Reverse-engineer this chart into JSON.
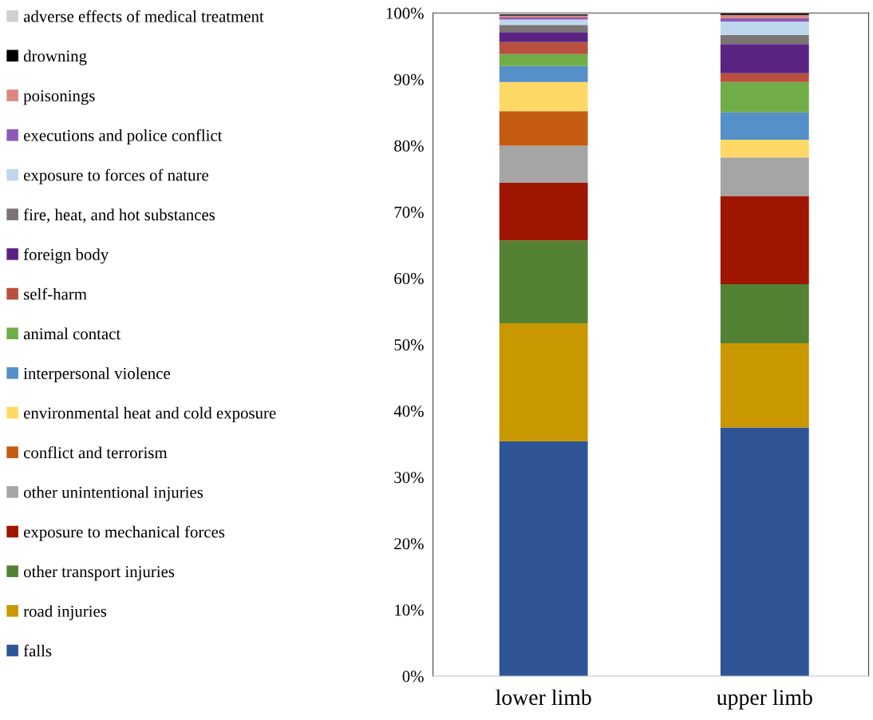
{
  "chart_data": {
    "type": "bar",
    "stacked": true,
    "categories": [
      "lower limb",
      "upper limb"
    ],
    "series": [
      {
        "name": "falls",
        "color": "#2f5597",
        "values": [
          35.4,
          37.5
        ]
      },
      {
        "name": "road injuries",
        "color": "#c99700",
        "values": [
          17.8,
          12.7
        ]
      },
      {
        "name": "other transport injuries",
        "color": "#548235",
        "values": [
          12.5,
          8.9
        ]
      },
      {
        "name": "exposure to mechanical forces",
        "color": "#9e1500",
        "values": [
          8.7,
          13.3
        ]
      },
      {
        "name": "other unintentional injuries",
        "color": "#a5a5a5",
        "values": [
          5.6,
          5.8
        ]
      },
      {
        "name": "conflict and terrorism",
        "color": "#c55a11",
        "values": [
          5.2,
          0
        ]
      },
      {
        "name": "environmental heat and cold exposure",
        "color": "#ffd966",
        "values": [
          4.4,
          2.7
        ]
      },
      {
        "name": "interpersonal violence",
        "color": "#5590c8",
        "values": [
          2.4,
          4.1
        ]
      },
      {
        "name": "animal contact",
        "color": "#70ad47",
        "values": [
          1.8,
          4.6
        ]
      },
      {
        "name": "self-harm",
        "color": "#b94f3f",
        "values": [
          1.8,
          1.3
        ]
      },
      {
        "name": "foreign body",
        "color": "#5a2381",
        "values": [
          1.5,
          4.4
        ]
      },
      {
        "name": "fire, heat, and hot substances",
        "color": "#7b7374",
        "values": [
          1.1,
          1.4
        ]
      },
      {
        "name": "exposure to forces of nature",
        "color": "#bdd7ee",
        "values": [
          0.8,
          2.0
        ]
      },
      {
        "name": "executions and police conflict",
        "color": "#8e5ab6",
        "values": [
          0.3,
          0.5
        ]
      },
      {
        "name": "poisonings",
        "color": "#d98880",
        "values": [
          0.3,
          0.5
        ]
      },
      {
        "name": "drowning",
        "color": "#000000",
        "values": [
          0.2,
          0.2
        ]
      },
      {
        "name": "adverse effects of medical treatment",
        "color": "#d0d0d0",
        "values": [
          null,
          null
        ]
      }
    ],
    "ylim": [
      0,
      100
    ],
    "yticks": [
      {
        "value": 0,
        "label": "0%"
      },
      {
        "value": 10,
        "label": "10%"
      },
      {
        "value": 20,
        "label": "20%"
      },
      {
        "value": 30,
        "label": "30%"
      },
      {
        "value": 40,
        "label": "40%"
      },
      {
        "value": 50,
        "label": "50%"
      },
      {
        "value": 60,
        "label": "60%"
      },
      {
        "value": 70,
        "label": "70%"
      },
      {
        "value": 80,
        "label": "80%"
      },
      {
        "value": 90,
        "label": "90%"
      },
      {
        "value": 100,
        "label": "100%"
      }
    ],
    "grid": false,
    "legend": "left"
  }
}
